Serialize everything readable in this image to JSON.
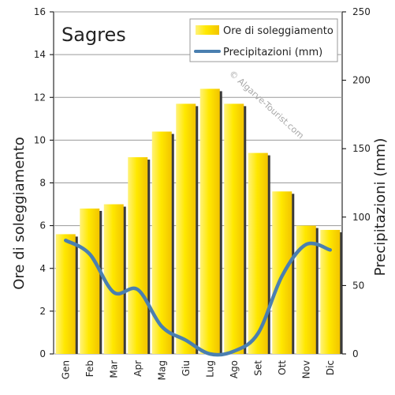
{
  "chart_data": {
    "type": "bar",
    "title": "Sagres",
    "watermark": "© Algarve-Tourist.com",
    "categories": [
      "Gen",
      "Feb",
      "Mar",
      "Apr",
      "Mag",
      "Giu",
      "Lug",
      "Ago",
      "Set",
      "Ott",
      "Nov",
      "Dic"
    ],
    "series": [
      {
        "name": "Ore di soleggiamento",
        "type": "bar",
        "axis": "left",
        "color": "#ffee00",
        "values": [
          5.6,
          6.8,
          7.0,
          9.2,
          10.4,
          11.7,
          12.4,
          11.7,
          9.4,
          7.6,
          6.0,
          5.8
        ]
      },
      {
        "name": "Precipitazioni (mm)",
        "type": "line",
        "axis": "right",
        "color": "#4a7fb0",
        "values": [
          83,
          73,
          45,
          47,
          20,
          10,
          0,
          2,
          15,
          57,
          80,
          76
        ]
      }
    ],
    "ylabel_left": "Ore di soleggiamento",
    "ylabel_right": "Precipitazioni (mm)",
    "ylim_left": [
      0,
      16
    ],
    "ylim_right": [
      0,
      250
    ],
    "yticks_left": [
      "0",
      "2",
      "4",
      "6",
      "8",
      "10",
      "12",
      "14",
      "16"
    ],
    "yticks_right": [
      "0",
      "50",
      "100",
      "150",
      "200",
      "250"
    ],
    "grid": true,
    "legend_position": "top-right"
  }
}
